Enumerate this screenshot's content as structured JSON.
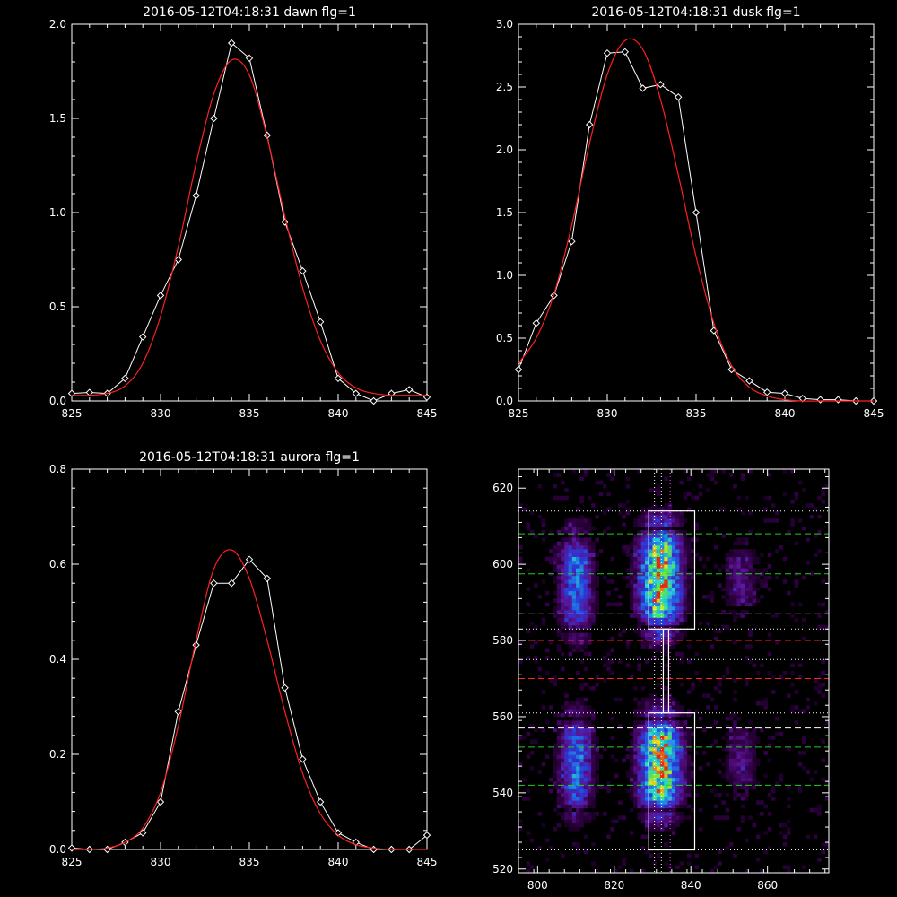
{
  "chart_data": [
    {
      "type": "line",
      "title": "2016-05-12T04:18:31 dawn flg=1",
      "xlabel": "",
      "ylabel": "",
      "xlim": [
        825,
        845
      ],
      "ylim": [
        0,
        2.0
      ],
      "xticks": [
        825,
        830,
        835,
        840,
        845
      ],
      "yticks": [
        0.0,
        0.5,
        1.0,
        1.5,
        2.0
      ],
      "ytick_labels": [
        "0.0",
        "0.5",
        "1.0",
        "1.5",
        "2.0"
      ],
      "series": [
        {
          "color": "#ffffff",
          "marker": "diamond",
          "x": [
            825,
            826,
            827,
            828,
            829,
            830,
            831,
            832,
            833,
            834,
            835,
            836,
            837,
            838,
            839,
            840,
            841,
            842,
            843,
            844,
            845
          ],
          "y": [
            0.04,
            0.045,
            0.04,
            0.12,
            0.34,
            0.56,
            0.75,
            1.09,
            1.5,
            1.9,
            1.82,
            1.41,
            0.95,
            0.69,
            0.42,
            0.12,
            0.04,
            0.0,
            0.04,
            0.06,
            0.02
          ]
        },
        {
          "color": "#ff2020",
          "marker": "none",
          "curve": "gaussian",
          "x": [
            825,
            826,
            827,
            828,
            829,
            830,
            831,
            832,
            833,
            834,
            835,
            836,
            837,
            838,
            839,
            840,
            841,
            842,
            843,
            844,
            845
          ],
          "y": [
            0.03,
            0.03,
            0.04,
            0.08,
            0.2,
            0.45,
            0.82,
            1.26,
            1.63,
            1.81,
            1.73,
            1.4,
            0.98,
            0.6,
            0.32,
            0.15,
            0.07,
            0.04,
            0.03,
            0.03,
            0.03
          ]
        }
      ]
    },
    {
      "type": "line",
      "title": "2016-05-12T04:18:31 dusk flg=1",
      "xlabel": "",
      "ylabel": "",
      "xlim": [
        825,
        845
      ],
      "ylim": [
        0,
        3.0
      ],
      "xticks": [
        825,
        830,
        835,
        840,
        845
      ],
      "yticks": [
        0.0,
        0.5,
        1.0,
        1.5,
        2.0,
        2.5,
        3.0
      ],
      "ytick_labels": [
        "0.0",
        "0.5",
        "1.0",
        "1.5",
        "2.0",
        "2.5",
        "3.0"
      ],
      "series": [
        {
          "color": "#ffffff",
          "marker": "diamond",
          "x": [
            825,
            826,
            827,
            828,
            829,
            830,
            831,
            832,
            833,
            834,
            835,
            836,
            837,
            838,
            839,
            840,
            841,
            842,
            843,
            844,
            845
          ],
          "y": [
            0.25,
            0.62,
            0.84,
            1.27,
            2.2,
            2.77,
            2.78,
            2.49,
            2.52,
            2.42,
            1.5,
            0.56,
            0.25,
            0.16,
            0.07,
            0.06,
            0.02,
            0.01,
            0.01,
            0.0,
            0.0
          ]
        },
        {
          "color": "#ff2020",
          "marker": "none",
          "x": [
            825,
            826,
            827,
            828,
            829,
            830,
            831,
            832,
            833,
            834,
            835,
            836,
            837,
            838,
            839,
            840,
            841,
            842,
            843,
            844,
            845
          ],
          "y": [
            0.3,
            0.5,
            0.85,
            1.4,
            2.05,
            2.6,
            2.87,
            2.8,
            2.4,
            1.8,
            1.15,
            0.62,
            0.28,
            0.11,
            0.04,
            0.01,
            0.0,
            0.0,
            0.0,
            0.0,
            0.0
          ]
        }
      ]
    },
    {
      "type": "line",
      "title": "2016-05-12T04:18:31 aurora flg=1",
      "xlabel": "",
      "ylabel": "",
      "xlim": [
        825,
        845
      ],
      "ylim": [
        0,
        0.8
      ],
      "xticks": [
        825,
        830,
        835,
        840,
        845
      ],
      "yticks": [
        0.0,
        0.2,
        0.4,
        0.6,
        0.8
      ],
      "ytick_labels": [
        "0.0",
        "0.2",
        "0.4",
        "0.6",
        "0.8"
      ],
      "series": [
        {
          "color": "#ffffff",
          "marker": "diamond",
          "x": [
            825,
            826,
            827,
            828,
            829,
            830,
            831,
            832,
            833,
            834,
            835,
            836,
            837,
            838,
            839,
            840,
            841,
            842,
            843,
            844,
            845
          ],
          "y": [
            0.003,
            0.0,
            0.0,
            0.015,
            0.035,
            0.1,
            0.29,
            0.43,
            0.56,
            0.56,
            0.61,
            0.57,
            0.34,
            0.19,
            0.1,
            0.035,
            0.015,
            0.0,
            0.0,
            0.0,
            0.03
          ]
        },
        {
          "color": "#ff2020",
          "marker": "none",
          "x": [
            825,
            826,
            827,
            828,
            829,
            830,
            831,
            832,
            833,
            834,
            835,
            836,
            837,
            838,
            839,
            840,
            841,
            842,
            843,
            844,
            845
          ],
          "y": [
            0.0,
            0.0,
            0.003,
            0.015,
            0.045,
            0.12,
            0.26,
            0.44,
            0.59,
            0.63,
            0.57,
            0.44,
            0.29,
            0.16,
            0.075,
            0.03,
            0.01,
            0.003,
            0.0,
            0.0,
            0.0
          ]
        }
      ]
    },
    {
      "type": "heatmap",
      "title": "",
      "xlabel": "",
      "ylabel": "",
      "xlim": [
        795,
        876
      ],
      "ylim": [
        519,
        625
      ],
      "xticks": [
        800,
        820,
        840,
        860
      ],
      "yticks": [
        520,
        540,
        560,
        580,
        600,
        620
      ],
      "colormap": "rainbow-on-black",
      "emission_columns": [
        {
          "x_center": 810,
          "x_width": 4,
          "y_ranges": [
            [
              582,
              608
            ],
            [
              535,
              560
            ]
          ],
          "peak_intensity": 0.55
        },
        {
          "x_center": 832,
          "x_width": 5,
          "y_ranges": [
            [
              583,
              610
            ],
            [
              535,
              560
            ]
          ],
          "peak_intensity": 1.0
        },
        {
          "x_center": 853,
          "x_width": 4,
          "y_ranges": [
            [
              588,
              605
            ],
            [
              540,
              558
            ]
          ],
          "peak_intensity": 0.22
        }
      ],
      "boxes": [
        {
          "x": [
            829,
            841
          ],
          "y": [
            583,
            614
          ]
        },
        {
          "x": [
            829,
            841
          ],
          "y": [
            525,
            561
          ]
        },
        {
          "x": [
            832.8,
            834.2
          ],
          "y": [
            561,
            583
          ]
        }
      ],
      "hlines": [
        {
          "y": 614,
          "color": "#ffffff",
          "style": "dotted"
        },
        {
          "y": 608,
          "color": "#22cc22",
          "style": "dashed"
        },
        {
          "y": 597.5,
          "color": "#22cc22",
          "style": "dashed"
        },
        {
          "y": 587,
          "color": "#ffffff",
          "style": "dashed"
        },
        {
          "y": 583,
          "color": "#ffffff",
          "style": "dotted"
        },
        {
          "y": 580,
          "color": "#ff2020",
          "style": "dashed"
        },
        {
          "y": 575,
          "color": "#ffffff",
          "style": "dotted"
        },
        {
          "y": 570,
          "color": "#ff2020",
          "style": "dashed"
        },
        {
          "y": 561,
          "color": "#ffffff",
          "style": "dotted"
        },
        {
          "y": 557,
          "color": "#ffffff",
          "style": "dashed"
        },
        {
          "y": 552,
          "color": "#22cc22",
          "style": "dashed"
        },
        {
          "y": 542,
          "color": "#22cc22",
          "style": "dashed"
        },
        {
          "y": 525,
          "color": "#ffffff",
          "style": "dotted"
        }
      ],
      "vlines": [
        {
          "x": 830.5,
          "color": "#ffffff",
          "style": "dotted"
        },
        {
          "x": 832.3,
          "color": "#ffffff",
          "style": "dotted"
        },
        {
          "x": 834.6,
          "color": "#ff40ff",
          "style": "dotted"
        }
      ]
    }
  ]
}
